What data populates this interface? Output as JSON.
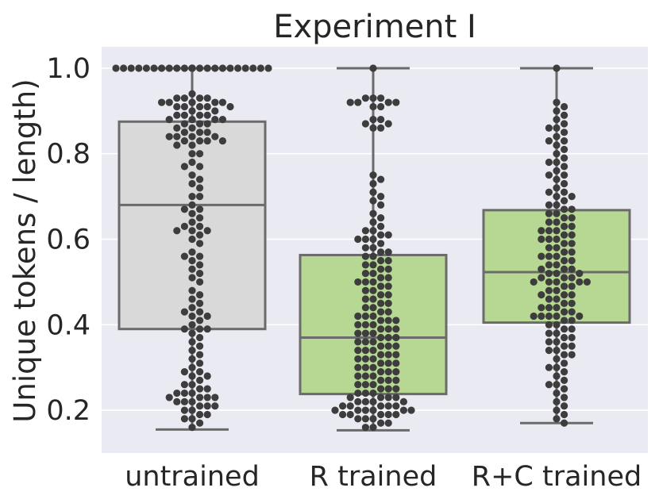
{
  "chart_data": {
    "type": "box",
    "title": "Experiment I",
    "xlabel": "",
    "ylabel": "Unique tokens / length)",
    "ylim": [
      0.1,
      1.05
    ],
    "yticks": [
      "0.2",
      "0.4",
      "0.6",
      "0.8",
      "1.0"
    ],
    "yticks_values": [
      0.2,
      0.4,
      0.6,
      0.8,
      1.0
    ],
    "grid": true,
    "background": "#eaeaf2",
    "categories": [
      "untrained",
      "R trained",
      "R+C trained"
    ],
    "boxes": [
      {
        "name": "untrained",
        "min": 0.155,
        "q1": 0.39,
        "median": 0.68,
        "q3": 0.875,
        "max": 1.0,
        "color": "#d9d9d9"
      },
      {
        "name": "R trained",
        "min": 0.153,
        "q1": 0.238,
        "median": 0.37,
        "q3": 0.563,
        "max": 1.0,
        "color": "#b6d892"
      },
      {
        "name": "R+C trained",
        "min": 0.17,
        "q1": 0.405,
        "median": 0.523,
        "q3": 0.668,
        "max": 1.0,
        "color": "#b6d892"
      }
    ],
    "swarm_point_color": "#3d3d3d",
    "points_note": "beeswarm overlay of individual samples",
    "points_sample": [
      [
        1.0,
        1.0,
        1.0,
        1.0,
        1.0,
        1.0,
        1.0,
        1.0,
        1.0,
        1.0,
        1.0,
        1.0,
        1.0,
        1.0,
        1.0,
        1.0,
        1.0,
        1.0,
        1.0,
        1.0,
        1.0,
        1.0,
        1.0,
        1.0,
        1.0,
        0.94,
        0.93,
        0.93,
        0.93,
        0.93,
        0.92,
        0.92,
        0.92,
        0.92,
        0.92,
        0.91,
        0.91,
        0.91,
        0.91,
        0.91,
        0.9,
        0.9,
        0.89,
        0.89,
        0.89,
        0.89,
        0.88,
        0.88,
        0.88,
        0.88,
        0.87,
        0.87,
        0.87,
        0.86,
        0.86,
        0.85,
        0.85,
        0.85,
        0.84,
        0.84,
        0.84,
        0.84,
        0.83,
        0.83,
        0.83,
        0.83,
        0.82,
        0.82,
        0.8,
        0.8,
        0.78,
        0.77,
        0.77,
        0.75,
        0.74,
        0.73,
        0.72,
        0.7,
        0.7,
        0.68,
        0.67,
        0.67,
        0.66,
        0.65,
        0.64,
        0.63,
        0.63,
        0.62,
        0.62,
        0.62,
        0.61,
        0.6,
        0.59,
        0.57,
        0.56,
        0.56,
        0.55,
        0.54,
        0.53,
        0.52,
        0.51,
        0.5,
        0.48,
        0.47,
        0.46,
        0.45,
        0.44,
        0.43,
        0.43,
        0.42,
        0.42,
        0.41,
        0.4,
        0.39,
        0.39,
        0.39,
        0.38,
        0.37,
        0.36,
        0.35,
        0.34,
        0.33,
        0.32,
        0.31,
        0.3,
        0.29,
        0.29,
        0.28,
        0.28,
        0.27,
        0.26,
        0.26,
        0.25,
        0.25,
        0.24,
        0.24,
        0.24,
        0.23,
        0.23,
        0.23,
        0.23,
        0.22,
        0.22,
        0.22,
        0.21,
        0.21,
        0.21,
        0.2,
        0.2,
        0.19,
        0.19,
        0.18,
        0.18,
        0.17,
        0.16
      ],
      [
        1.0,
        0.93,
        0.93,
        0.93,
        0.92,
        0.92,
        0.92,
        0.92,
        0.91,
        0.91,
        0.88,
        0.88,
        0.87,
        0.87,
        0.86,
        0.86,
        0.75,
        0.74,
        0.73,
        0.71,
        0.7,
        0.69,
        0.68,
        0.66,
        0.65,
        0.64,
        0.63,
        0.62,
        0.62,
        0.61,
        0.61,
        0.6,
        0.6,
        0.6,
        0.59,
        0.58,
        0.58,
        0.57,
        0.57,
        0.56,
        0.56,
        0.55,
        0.55,
        0.54,
        0.54,
        0.53,
        0.53,
        0.52,
        0.52,
        0.51,
        0.51,
        0.5,
        0.5,
        0.5,
        0.49,
        0.49,
        0.48,
        0.48,
        0.47,
        0.47,
        0.46,
        0.46,
        0.45,
        0.45,
        0.44,
        0.44,
        0.43,
        0.43,
        0.42,
        0.42,
        0.42,
        0.41,
        0.41,
        0.41,
        0.4,
        0.4,
        0.4,
        0.39,
        0.39,
        0.39,
        0.38,
        0.38,
        0.38,
        0.37,
        0.37,
        0.37,
        0.36,
        0.36,
        0.36,
        0.35,
        0.35,
        0.35,
        0.34,
        0.34,
        0.34,
        0.33,
        0.33,
        0.33,
        0.32,
        0.32,
        0.32,
        0.31,
        0.31,
        0.31,
        0.3,
        0.3,
        0.3,
        0.29,
        0.29,
        0.29,
        0.28,
        0.28,
        0.28,
        0.27,
        0.27,
        0.27,
        0.26,
        0.26,
        0.26,
        0.25,
        0.25,
        0.25,
        0.24,
        0.24,
        0.24,
        0.23,
        0.23,
        0.23,
        0.23,
        0.22,
        0.22,
        0.22,
        0.22,
        0.21,
        0.21,
        0.21,
        0.21,
        0.21,
        0.2,
        0.2,
        0.2,
        0.2,
        0.2,
        0.2,
        0.19,
        0.19,
        0.19,
        0.19,
        0.19,
        0.18,
        0.18,
        0.18,
        0.17,
        0.17,
        0.16,
        0.16
      ],
      [
        1.0,
        0.92,
        0.91,
        0.9,
        0.89,
        0.88,
        0.87,
        0.86,
        0.86,
        0.85,
        0.84,
        0.83,
        0.83,
        0.82,
        0.81,
        0.8,
        0.79,
        0.78,
        0.78,
        0.77,
        0.76,
        0.75,
        0.75,
        0.74,
        0.73,
        0.72,
        0.71,
        0.71,
        0.7,
        0.7,
        0.69,
        0.68,
        0.68,
        0.67,
        0.67,
        0.66,
        0.66,
        0.65,
        0.65,
        0.64,
        0.64,
        0.63,
        0.63,
        0.62,
        0.62,
        0.62,
        0.61,
        0.61,
        0.6,
        0.6,
        0.6,
        0.59,
        0.59,
        0.58,
        0.58,
        0.57,
        0.57,
        0.56,
        0.56,
        0.56,
        0.55,
        0.55,
        0.54,
        0.54,
        0.53,
        0.53,
        0.53,
        0.52,
        0.52,
        0.52,
        0.51,
        0.51,
        0.51,
        0.5,
        0.5,
        0.5,
        0.5,
        0.5,
        0.49,
        0.49,
        0.48,
        0.48,
        0.47,
        0.47,
        0.47,
        0.46,
        0.46,
        0.45,
        0.45,
        0.44,
        0.44,
        0.44,
        0.43,
        0.43,
        0.42,
        0.42,
        0.42,
        0.42,
        0.42,
        0.41,
        0.41,
        0.4,
        0.4,
        0.39,
        0.39,
        0.38,
        0.38,
        0.37,
        0.37,
        0.36,
        0.36,
        0.35,
        0.35,
        0.34,
        0.34,
        0.33,
        0.33,
        0.32,
        0.31,
        0.3,
        0.3,
        0.29,
        0.28,
        0.27,
        0.26,
        0.26,
        0.25,
        0.24,
        0.23,
        0.22,
        0.21,
        0.2,
        0.19,
        0.18,
        0.17
      ]
    ]
  }
}
